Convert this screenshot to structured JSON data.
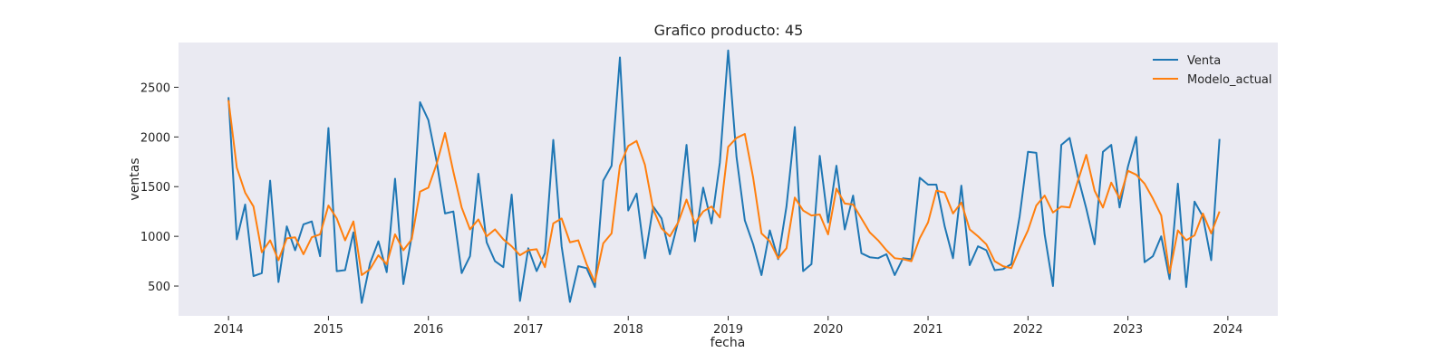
{
  "chart_data": {
    "type": "line",
    "title": "Grafico producto: 45",
    "xlabel": "fecha",
    "ylabel": "ventas",
    "x_start": "2014-01",
    "x_frequency": "monthly",
    "xlim": [
      "2013-07",
      "2024-07"
    ],
    "ylim": [
      200,
      2950
    ],
    "x_tick_labels": [
      "2014",
      "2015",
      "2016",
      "2017",
      "2018",
      "2019",
      "2020",
      "2021",
      "2022",
      "2023",
      "2024"
    ],
    "y_ticks": [
      500,
      1000,
      1500,
      2000,
      2500
    ],
    "y_tick_labels": [
      "500",
      "1000",
      "1500",
      "2000",
      "2500"
    ],
    "grid": false,
    "legend_position": "top-right",
    "background": "#eaeaf2",
    "series": [
      {
        "name": "Venta",
        "color": "#1f77b4",
        "values": [
          2400,
          970,
          1320,
          600,
          630,
          1560,
          540,
          1100,
          860,
          1120,
          1150,
          800,
          2090,
          650,
          660,
          1040,
          330,
          730,
          950,
          640,
          1580,
          520,
          1000,
          2350,
          2170,
          1750,
          1230,
          1250,
          630,
          800,
          1630,
          940,
          750,
          690,
          1420,
          350,
          880,
          650,
          830,
          1970,
          900,
          340,
          700,
          680,
          490,
          1560,
          1710,
          2800,
          1260,
          1430,
          780,
          1300,
          1180,
          820,
          1150,
          1920,
          950,
          1490,
          1130,
          1740,
          2870,
          1800,
          1160,
          920,
          610,
          1060,
          770,
          1300,
          2100,
          650,
          720,
          1810,
          1140,
          1710,
          1070,
          1410,
          830,
          790,
          780,
          820,
          610,
          780,
          770,
          1590,
          1520,
          1520,
          1100,
          780,
          1510,
          710,
          900,
          860,
          660,
          670,
          720,
          1200,
          1850,
          1840,
          1020,
          500,
          1920,
          1990,
          1600,
          1280,
          920,
          1850,
          1920,
          1290,
          1700,
          2000,
          740,
          800,
          1000,
          570,
          1530,
          490,
          1350,
          1200,
          760,
          1980
        ]
      },
      {
        "name": "Modelo_actual",
        "color": "#ff7f0e",
        "values": [
          2370,
          1690,
          1440,
          1300,
          840,
          960,
          760,
          980,
          990,
          820,
          990,
          1020,
          1310,
          1180,
          960,
          1150,
          610,
          670,
          810,
          720,
          1020,
          860,
          970,
          1450,
          1490,
          1730,
          2040,
          1650,
          1290,
          1070,
          1170,
          1000,
          1070,
          970,
          900,
          810,
          860,
          870,
          690,
          1130,
          1180,
          940,
          960,
          720,
          540,
          930,
          1030,
          1710,
          1910,
          1960,
          1720,
          1270,
          1080,
          1000,
          1140,
          1370,
          1130,
          1250,
          1300,
          1190,
          1900,
          1990,
          2030,
          1590,
          1030,
          950,
          780,
          880,
          1390,
          1260,
          1210,
          1220,
          1020,
          1480,
          1330,
          1320,
          1180,
          1040,
          960,
          860,
          780,
          770,
          750,
          980,
          1140,
          1460,
          1440,
          1230,
          1340,
          1070,
          1000,
          920,
          750,
          700,
          680,
          880,
          1060,
          1310,
          1410,
          1240,
          1300,
          1290,
          1560,
          1820,
          1460,
          1290,
          1540,
          1380,
          1660,
          1620,
          1530,
          1380,
          1210,
          630,
          1060,
          960,
          1010,
          1230,
          1030,
          1250
        ]
      }
    ]
  }
}
